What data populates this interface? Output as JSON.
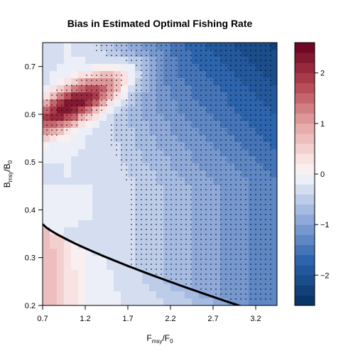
{
  "chart_data": {
    "type": "heatmap",
    "title": "Bias in Estimated Optimal Fishing Rate",
    "xlabel": {
      "main": "F",
      "sub": "msy",
      "sep": "/F",
      "sub2": "0"
    },
    "ylabel": {
      "main": "B",
      "sub": "msy",
      "sep": "/B",
      "sub2": "0"
    },
    "x_ticks": [
      "0.7",
      "1.2",
      "1.7",
      "2.2",
      "2.7",
      "3.2"
    ],
    "y_ticks": [
      "0.2",
      "0.3",
      "0.4",
      "0.5",
      "0.6",
      "0.7"
    ],
    "xlim": [
      0.7,
      3.45
    ],
    "ylim": [
      0.2,
      0.75
    ],
    "colorbar": {
      "range": [
        -2.6,
        2.6
      ],
      "levels": 26,
      "ticks": [
        "2",
        "1",
        "0",
        "−1",
        "−2"
      ],
      "tick_values": [
        2,
        1,
        0,
        -1,
        -2
      ],
      "colors": {
        "high": "#67001f",
        "mid": "#f7f7f7",
        "low": "#053061"
      }
    },
    "peak": {
      "x": 1.05,
      "y": 0.62,
      "value": 2.6
    },
    "stippling": "dots mark significant bias",
    "curve": "black boundary curve from (0.7, 0.37) to (3.0, 0.2)"
  }
}
